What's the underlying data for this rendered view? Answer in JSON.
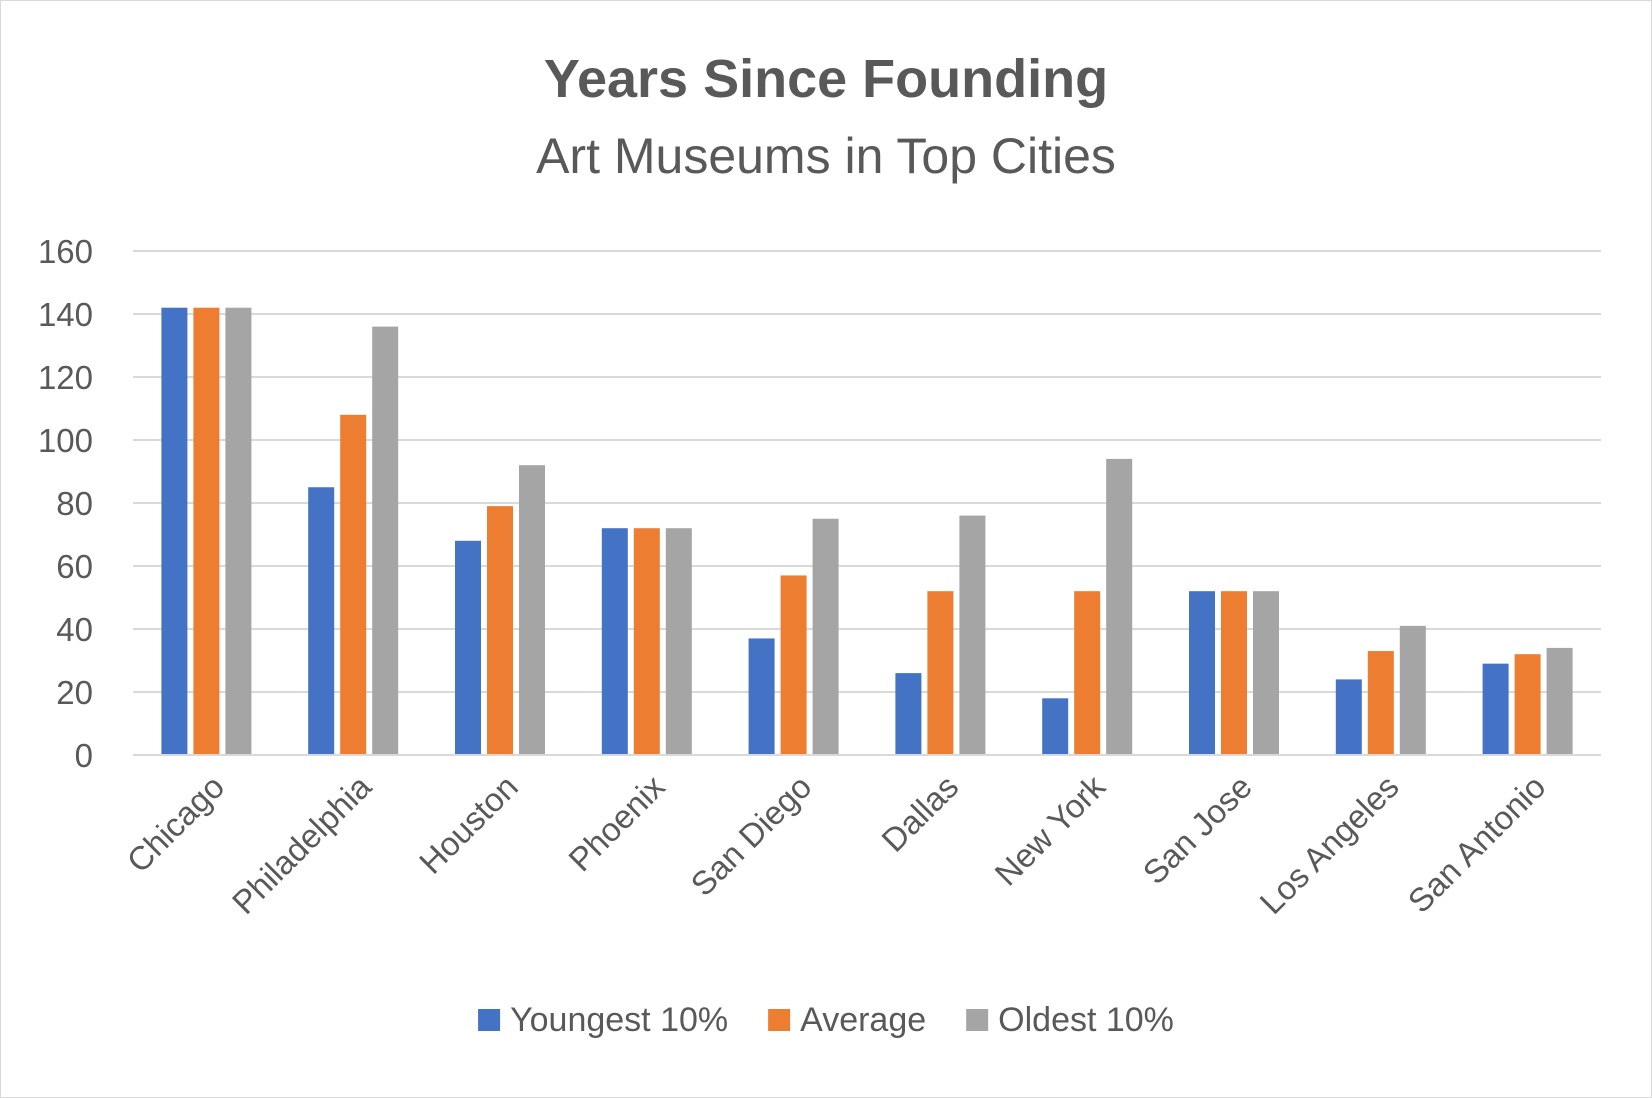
{
  "chart_data": {
    "type": "bar",
    "title": "Years Since Founding",
    "subtitle": "Art Museums in Top Cities",
    "xlabel": "",
    "ylabel": "",
    "ylim": [
      0,
      160
    ],
    "yticks": [
      0,
      20,
      40,
      60,
      80,
      100,
      120,
      140,
      160
    ],
    "grid": true,
    "legend_position": "bottom",
    "categories": [
      "Chicago",
      "Philadelphia",
      "Houston",
      "Phoenix",
      "San Diego",
      "Dallas",
      "New York",
      "San Jose",
      "Los Angeles",
      "San Antonio"
    ],
    "series": [
      {
        "name": "Youngest 10%",
        "color": "#4472c4",
        "values": [
          142,
          85,
          68,
          72,
          37,
          26,
          18,
          52,
          24,
          29
        ]
      },
      {
        "name": "Average",
        "color": "#ed7d31",
        "values": [
          142,
          108,
          79,
          72,
          57,
          52,
          52,
          52,
          33,
          32
        ]
      },
      {
        "name": "Oldest 10%",
        "color": "#a5a5a5",
        "values": [
          142,
          136,
          92,
          72,
          75,
          76,
          94,
          52,
          41,
          34
        ]
      }
    ]
  }
}
